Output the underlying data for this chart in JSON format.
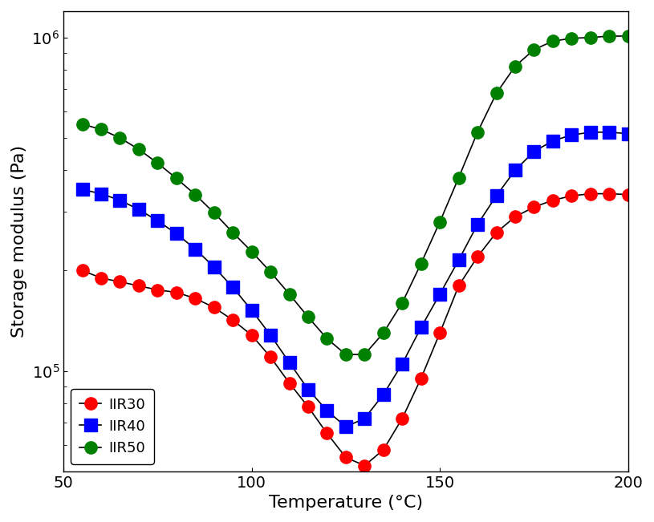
{
  "title": "",
  "xlabel": "Temperature (°C)",
  "ylabel": "Storage modulus (Pa)",
  "xlim": [
    50,
    200
  ],
  "ylim": [
    50000.0,
    1200000.0
  ],
  "legend_labels": [
    "IIR30",
    "IIR40",
    "IIR50"
  ],
  "colors": [
    "#ff0000",
    "#0000ff",
    "#008000"
  ],
  "markers": [
    "o",
    "s",
    "o"
  ],
  "IIR30_x": [
    55,
    60,
    65,
    70,
    75,
    80,
    85,
    90,
    95,
    100,
    105,
    110,
    115,
    120,
    125,
    130,
    135,
    140,
    145,
    150,
    155,
    160,
    165,
    170,
    175,
    180,
    185,
    190,
    195,
    200
  ],
  "IIR30_y": [
    200000.0,
    190000.0,
    185000.0,
    180000.0,
    175000.0,
    172000.0,
    165000.0,
    155000.0,
    142000.0,
    128000.0,
    110000.0,
    92000.0,
    78000.0,
    65000.0,
    55000.0,
    52000.0,
    58000.0,
    72000.0,
    95000.0,
    130000.0,
    180000.0,
    220000.0,
    260000.0,
    290000.0,
    310000.0,
    325000.0,
    335000.0,
    340000.0,
    340000.0,
    338000.0
  ],
  "IIR40_x": [
    55,
    60,
    65,
    70,
    75,
    80,
    85,
    90,
    95,
    100,
    105,
    110,
    115,
    120,
    125,
    130,
    135,
    140,
    145,
    150,
    155,
    160,
    165,
    170,
    175,
    180,
    185,
    190,
    195,
    200
  ],
  "IIR40_y": [
    350000.0,
    340000.0,
    325000.0,
    305000.0,
    282000.0,
    258000.0,
    232000.0,
    205000.0,
    178000.0,
    152000.0,
    128000.0,
    106000.0,
    88000.0,
    76000.0,
    68000.0,
    72000.0,
    85000.0,
    105000.0,
    135000.0,
    170000.0,
    215000.0,
    275000.0,
    335000.0,
    400000.0,
    455000.0,
    490000.0,
    510000.0,
    520000.0,
    520000.0,
    515000.0
  ],
  "IIR50_x": [
    55,
    60,
    65,
    70,
    75,
    80,
    85,
    90,
    95,
    100,
    105,
    110,
    115,
    120,
    125,
    130,
    135,
    140,
    145,
    150,
    155,
    160,
    165,
    170,
    175,
    180,
    185,
    190,
    195,
    200
  ],
  "IIR50_y": [
    550000.0,
    530000.0,
    500000.0,
    462000.0,
    420000.0,
    378000.0,
    338000.0,
    298000.0,
    260000.0,
    228000.0,
    198000.0,
    170000.0,
    145000.0,
    125000.0,
    112000.0,
    112000.0,
    130000.0,
    160000.0,
    210000.0,
    280000.0,
    380000.0,
    520000.0,
    680000.0,
    820000.0,
    920000.0,
    975000.0,
    995000.0,
    1000000.0,
    1010000.0,
    1010000.0
  ],
  "background_color": "#ffffff",
  "tick_fontsize": 14,
  "label_fontsize": 16,
  "legend_fontsize": 13,
  "linewidth": 1.2,
  "markersize": 11
}
